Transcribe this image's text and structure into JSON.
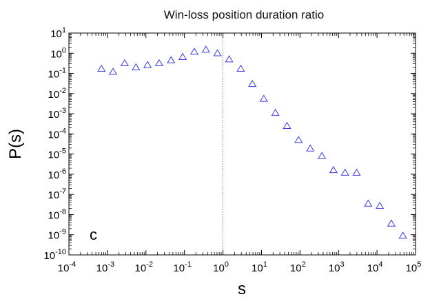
{
  "chart_data": {
    "type": "scatter",
    "title": "Win-loss position duration ratio",
    "xlabel": "s",
    "ylabel": "P(s)",
    "panel_label": "c",
    "x_scale": "log",
    "y_scale": "log",
    "xlim": [
      0.0001,
      100000
    ],
    "ylim": [
      1e-10,
      10
    ],
    "x_ticks": [
      "10^-4",
      "10^-3",
      "10^-2",
      "10^-1",
      "10^0",
      "10^1",
      "10^2",
      "10^3",
      "10^4",
      "10^5"
    ],
    "y_ticks": [
      "10^-10",
      "10^-9",
      "10^-8",
      "10^-7",
      "10^-6",
      "10^-5",
      "10^-4",
      "10^-3",
      "10^-2",
      "10^-1",
      "10^0",
      "10^1"
    ],
    "reference_line_x": 1,
    "grid": false,
    "marker": "open-triangle",
    "marker_color": "#3a3ae6",
    "series": [
      {
        "x": [
          0.0007,
          0.0014,
          0.0028,
          0.0055,
          0.011,
          0.022,
          0.045,
          0.09,
          0.18,
          0.36,
          0.72,
          1.45,
          2.9,
          5.8,
          11.5,
          23,
          46,
          92,
          185,
          370,
          740,
          1480,
          2950,
          5900,
          11800,
          23500,
          47000
        ],
        "y": [
          0.17,
          0.12,
          0.32,
          0.2,
          0.26,
          0.32,
          0.45,
          0.65,
          1.2,
          1.5,
          1.0,
          0.5,
          0.17,
          0.03,
          0.0055,
          0.0011,
          0.00025,
          5e-05,
          1.9e-05,
          8e-06,
          1.6e-06,
          1.2e-06,
          1.2e-06,
          3.5e-08,
          2.7e-08,
          3.6e-09,
          9e-10
        ]
      }
    ]
  }
}
